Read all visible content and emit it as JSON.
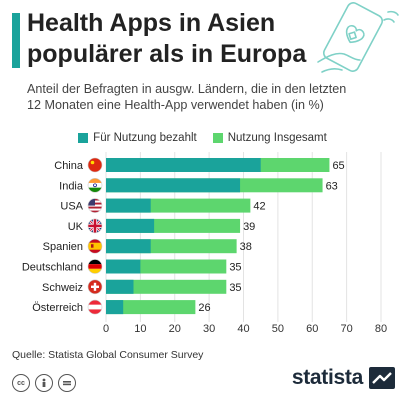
{
  "header": {
    "title_line1": "Health Apps in Asien",
    "title_line2": "populärer als in Europa",
    "subtitle_line1": "Anteil der Befragten in ausgw. Ländern, die in den letzten",
    "subtitle_line2": "12 Monaten eine Health-App verwendet haben (in %)"
  },
  "colors": {
    "paid": "#1aa39b",
    "total": "#5dd66e",
    "accent": "#1aa39b",
    "grid": "#e3e3e3"
  },
  "chart_data": {
    "type": "bar",
    "orientation": "horizontal",
    "categories": [
      "China",
      "India",
      "USA",
      "UK",
      "Spanien",
      "Deutschland",
      "Schweiz",
      "Österreich"
    ],
    "series": [
      {
        "name": "Für Nutzung bezahlt",
        "values": [
          45,
          39,
          13,
          14,
          13,
          10,
          8,
          5
        ]
      },
      {
        "name": "Nutzung Insgesamt",
        "values": [
          65,
          63,
          42,
          39,
          38,
          35,
          35,
          26
        ]
      }
    ],
    "data_labels": [
      "65",
      "63",
      "42",
      "39",
      "38",
      "35",
      "35",
      "26"
    ],
    "xlim": [
      0,
      80
    ],
    "xticks": [
      0,
      10,
      20,
      30,
      40,
      50,
      60,
      70,
      80
    ],
    "grid": true,
    "legend_position": "top"
  },
  "flags": [
    "flag-china-icon",
    "flag-india-icon",
    "flag-usa-icon",
    "flag-uk-icon",
    "flag-spain-icon",
    "flag-germany-icon",
    "flag-switzerland-icon",
    "flag-austria-icon"
  ],
  "footer": {
    "source": "Quelle: Statista Global Consumer Survey",
    "brand": "statista"
  }
}
